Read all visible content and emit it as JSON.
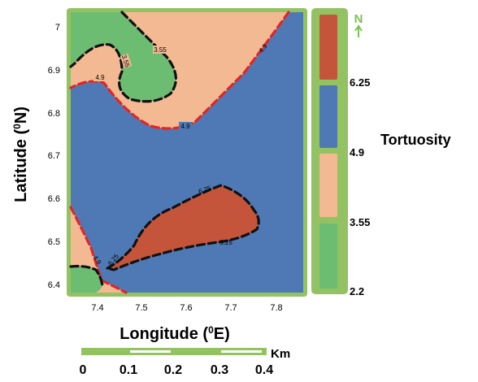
{
  "axes": {
    "y_title": "Latitude (",
    "y_title_sup": "0",
    "y_title_end": "N)",
    "x_title": "Longitude (",
    "x_title_sup": "0",
    "x_title_end": "E)",
    "y_ticks": [
      "7",
      "6.9",
      "6.8",
      "6.7",
      "6.6",
      "6.5",
      "6.4"
    ],
    "x_ticks": [
      "7.4",
      "7.5",
      "7.6",
      "7.7",
      "7.8"
    ]
  },
  "contour_labels": {
    "c355a": "3.55",
    "c355b": "3.55",
    "c49a": "4.9",
    "c49b": "4.9",
    "c49c": "4.9",
    "c49d": "4.9",
    "c625a": "6.25",
    "c625b": "6.25",
    "c625c": "6.25"
  },
  "legend": {
    "title": "Tortuosity",
    "values": [
      "6.25",
      "4.9",
      "3.55",
      "2.2"
    ],
    "colors": {
      "high": "#c4553a",
      "mid_high": "#4f79b5",
      "mid_low": "#f3b993",
      "low": "#6cbd72",
      "frame": "#93c262"
    }
  },
  "north_arrow": {
    "label": "N"
  },
  "scale_bar": {
    "unit": "Km",
    "labels": [
      "0",
      "0.1",
      "0.2",
      "0.3",
      "0.4"
    ]
  }
}
